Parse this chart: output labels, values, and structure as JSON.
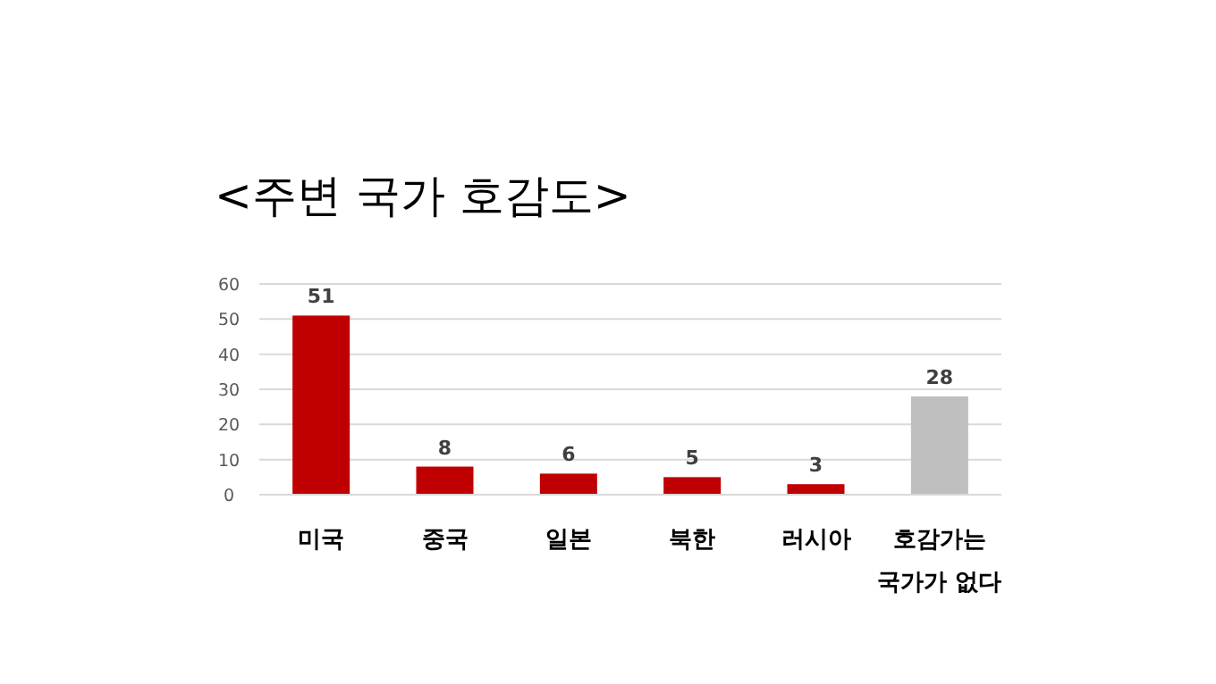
{
  "chart_data": {
    "type": "bar",
    "title": "<주변 국가 호감도>",
    "categories": [
      "미국",
      "중국",
      "일본",
      "북한",
      "러시아",
      "호감가는 국가가 없다"
    ],
    "values": [
      51,
      8,
      6,
      5,
      3,
      28
    ],
    "colors": [
      "#c00000",
      "#c00000",
      "#c00000",
      "#c00000",
      "#c00000",
      "#bfbfbf"
    ],
    "ylim": [
      0,
      60
    ],
    "yticks": [
      0,
      10,
      20,
      30,
      40,
      50,
      60
    ],
    "grid": "y",
    "data_labels": true
  }
}
